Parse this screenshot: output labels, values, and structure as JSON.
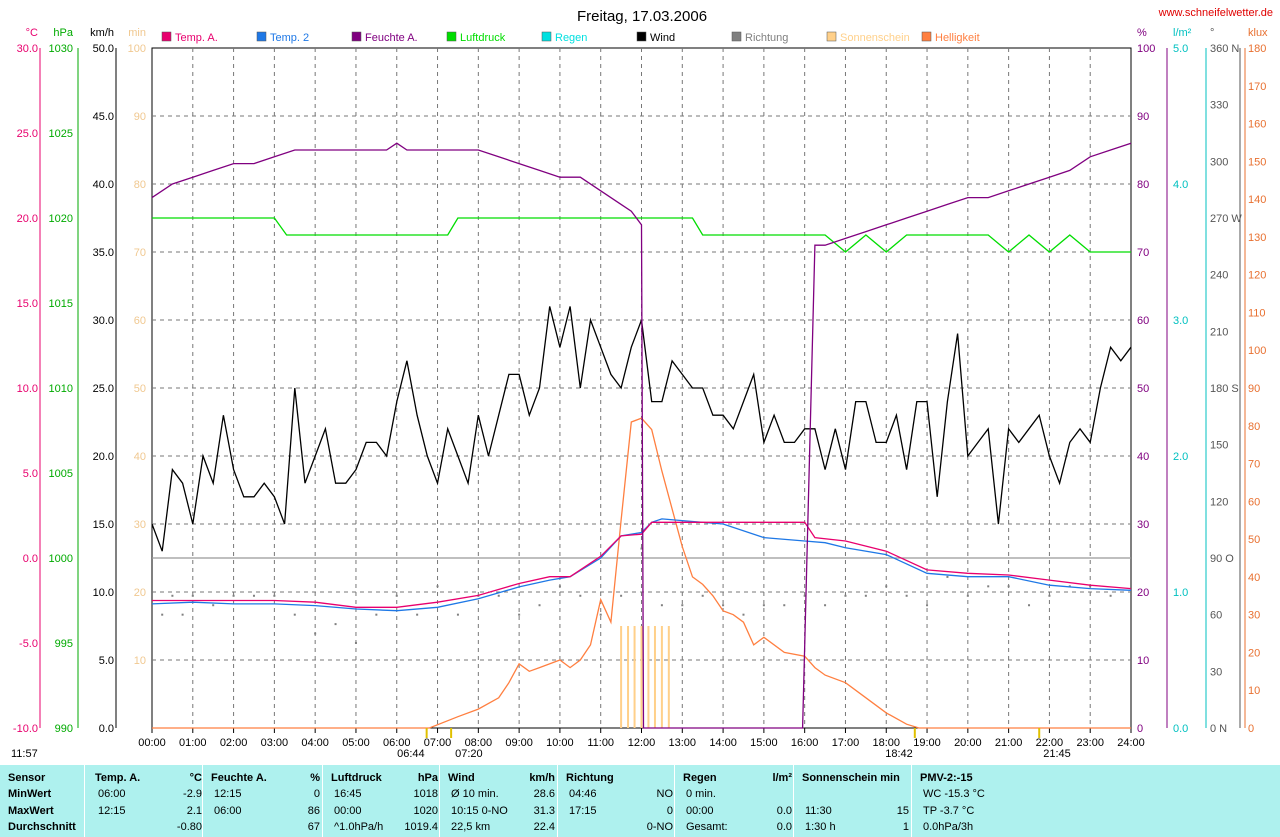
{
  "site": "www.schneifelwetter.de",
  "left_info": "11:57",
  "sun_events": [
    {
      "label": "06:44",
      "time": 6.733
    },
    {
      "label": "07:20",
      "time": 7.333
    },
    {
      "label": "18:42",
      "time": 18.7
    },
    {
      "label": "21:45",
      "time": 21.75
    }
  ],
  "chart_data": {
    "type": "line",
    "title": "Freitag, 17.03.2006",
    "x_range": [
      0,
      24
    ],
    "x_tick_labels": [
      "00:00",
      "01:00",
      "02:00",
      "03:00",
      "04:00",
      "05:00",
      "06:00",
      "07:00",
      "08:00",
      "09:00",
      "10:00",
      "11:00",
      "12:00",
      "13:00",
      "14:00",
      "15:00",
      "16:00",
      "17:00",
      "18:00",
      "19:00",
      "20:00",
      "21:00",
      "22:00",
      "23:00",
      "24:00"
    ],
    "grid": true,
    "legend_position": "top",
    "legend": [
      {
        "name": "Temp. A.",
        "color": "#e8006e"
      },
      {
        "name": "Temp. 2",
        "color": "#1e78e6"
      },
      {
        "name": "Feuchte A.",
        "color": "#800080"
      },
      {
        "name": "Luftdruck",
        "color": "#00dd00"
      },
      {
        "name": "Regen",
        "color": "#00e0e0"
      },
      {
        "name": "Wind",
        "color": "#000000"
      },
      {
        "name": "Richtung",
        "color": "#808080"
      },
      {
        "name": "Sonnenschein",
        "color": "#ffd08a"
      },
      {
        "name": "Helligkeit",
        "color": "#ff7f40"
      }
    ],
    "axes": [
      {
        "unit": "°C",
        "color": "#e8006e",
        "range": [
          -10,
          30
        ],
        "ticks": [
          "30.0",
          "25.0",
          "20.0",
          "15.0",
          "10.0",
          "5.0",
          "0.0",
          "-5.0",
          "-10.0"
        ]
      },
      {
        "unit": "hPa",
        "color": "#00aa00",
        "range": [
          990,
          1030
        ],
        "ticks": [
          "1030",
          "1025",
          "1020",
          "1015",
          "1010",
          "1005",
          "1000",
          "995",
          "990"
        ]
      },
      {
        "unit": "km/h",
        "color": "#000000",
        "range": [
          0,
          50
        ],
        "ticks": [
          "50.0",
          "45.0",
          "40.0",
          "35.0",
          "30.0",
          "25.0",
          "20.0",
          "15.0",
          "10.0",
          "5.0",
          "0.0"
        ]
      },
      {
        "unit": "min",
        "color": "#f0c890",
        "range": [
          0,
          100
        ],
        "ticks": [
          "100",
          "90",
          "80",
          "70",
          "60",
          "50",
          "40",
          "30",
          "20",
          "10"
        ]
      },
      {
        "unit": "%",
        "color": "#800080",
        "range": [
          0,
          100
        ],
        "ticks": [
          "100",
          "90",
          "80",
          "70",
          "60",
          "50",
          "40",
          "30",
          "20",
          "10",
          "0"
        ]
      },
      {
        "unit": "l/m²",
        "color": "#00c0c0",
        "range": [
          0,
          5
        ],
        "ticks": [
          "5.0",
          "4.0",
          "3.0",
          "2.0",
          "1.0",
          "0.0"
        ]
      },
      {
        "unit": "°",
        "color": "#555555",
        "range": [
          0,
          360
        ],
        "ticks": [
          "360 N",
          "330",
          "300",
          "270 W",
          "240",
          "210",
          "180 S",
          "150",
          "120",
          "90 O",
          "60",
          "30",
          "0 N"
        ]
      },
      {
        "unit": "klux",
        "color": "#e87030",
        "range": [
          0,
          180
        ],
        "ticks": [
          "180",
          "170",
          "160",
          "150",
          "140",
          "130",
          "120",
          "110",
          "100",
          "90",
          "80",
          "70",
          "60",
          "50",
          "40",
          "30",
          "20",
          "10",
          "0"
        ]
      }
    ],
    "series": [
      {
        "name": "Temp. A.",
        "axis": "°C",
        "color": "#e8006e",
        "x": [
          0,
          1,
          2,
          3,
          4,
          5,
          6,
          7,
          8,
          9,
          9.75,
          10.25,
          11,
          11.5,
          12,
          12.25,
          12.5,
          13,
          14,
          15,
          16,
          16.25,
          17,
          18,
          19,
          20,
          21,
          22,
          23,
          24
        ],
        "y": [
          -2.5,
          -2.5,
          -2.5,
          -2.5,
          -2.6,
          -2.9,
          -2.9,
          -2.6,
          -2.2,
          -1.5,
          -1.1,
          -1.1,
          0.1,
          1.3,
          1.4,
          2.1,
          2.1,
          2.1,
          2.1,
          2.1,
          2.1,
          1.2,
          1.0,
          0.4,
          -0.7,
          -0.9,
          -1.0,
          -1.3,
          -1.6,
          -1.8
        ]
      },
      {
        "name": "Temp. 2",
        "axis": "°C",
        "color": "#1e78e6",
        "x": [
          0,
          1,
          2,
          3,
          4,
          5,
          6,
          7,
          8,
          9,
          9.75,
          10.25,
          11,
          11.5,
          12,
          12.25,
          12.5,
          13,
          14,
          15,
          16,
          16.5,
          17,
          18,
          19,
          20,
          21,
          22,
          23,
          24
        ],
        "y": [
          -2.7,
          -2.6,
          -2.7,
          -2.7,
          -2.8,
          -3.0,
          -3.1,
          -2.9,
          -2.4,
          -1.7,
          -1.3,
          -1.1,
          0,
          1.3,
          1.5,
          2.1,
          2.3,
          2.2,
          2.0,
          1.2,
          1.0,
          0.9,
          0.6,
          0.2,
          -0.9,
          -1.1,
          -1.1,
          -1.6,
          -1.8,
          -1.9
        ]
      },
      {
        "name": "Feuchte A.",
        "axis": "%",
        "color": "#800080",
        "x": [
          0,
          0.5,
          1,
          1.5,
          2,
          2.5,
          3,
          3.5,
          4,
          5,
          5.75,
          6,
          6.25,
          7,
          8,
          8.5,
          9,
          9.5,
          10,
          10.5,
          11,
          11.5,
          11.75,
          12,
          12.05,
          12.2,
          12.22,
          15.9,
          15.95,
          16.25,
          16.5,
          17,
          17.5,
          18,
          18.5,
          19,
          19.5,
          20,
          20.5,
          21,
          21.5,
          22,
          22.5,
          23,
          23.5,
          24
        ],
        "y": [
          78,
          80,
          81,
          82,
          83,
          83,
          84,
          85,
          85,
          85,
          85,
          86,
          85,
          85,
          85,
          84,
          83,
          82,
          81,
          81,
          79,
          77,
          76,
          74,
          0,
          0,
          0,
          0,
          0,
          71,
          71,
          72,
          73,
          74,
          75,
          76,
          77,
          78,
          78,
          79,
          80,
          81,
          82,
          84,
          85,
          86
        ]
      },
      {
        "name": "Luftdruck",
        "axis": "hPa",
        "color": "#00dd00",
        "x": [
          0,
          3,
          3.3,
          4,
          5,
          6,
          7,
          7.25,
          7.5,
          8,
          9,
          10,
          11,
          12,
          13,
          13.25,
          13.5,
          14,
          15,
          16,
          16.5,
          17,
          17.5,
          18,
          18.5,
          19,
          20,
          20.5,
          21,
          21.5,
          22,
          22.5,
          23,
          24
        ],
        "y": [
          1020,
          1020,
          1019,
          1019,
          1019,
          1019,
          1019,
          1019,
          1020,
          1020,
          1020,
          1020,
          1020,
          1020,
          1020,
          1020,
          1019,
          1019,
          1019,
          1019,
          1019,
          1018,
          1019,
          1018,
          1019,
          1019,
          1019,
          1019,
          1018,
          1019,
          1018,
          1019,
          1018,
          1018
        ]
      },
      {
        "name": "Wind",
        "axis": "km/h",
        "color": "#000000",
        "x": [
          0,
          0.25,
          0.5,
          0.75,
          1,
          1.25,
          1.5,
          1.75,
          2,
          2.25,
          2.5,
          2.75,
          3,
          3.25,
          3.5,
          3.75,
          4,
          4.25,
          4.5,
          4.75,
          5,
          5.25,
          5.5,
          5.75,
          6,
          6.25,
          6.5,
          6.75,
          7,
          7.25,
          7.5,
          7.75,
          8,
          8.25,
          8.5,
          8.75,
          9,
          9.25,
          9.5,
          9.75,
          10,
          10.25,
          10.5,
          10.75,
          11,
          11.25,
          11.5,
          11.75,
          12,
          12.25,
          12.5,
          12.75,
          13,
          13.25,
          13.5,
          13.75,
          14,
          14.25,
          14.5,
          14.75,
          15,
          15.25,
          15.5,
          15.75,
          16,
          16.25,
          16.5,
          16.75,
          17,
          17.25,
          17.5,
          17.75,
          18,
          18.25,
          18.5,
          18.75,
          19,
          19.25,
          19.5,
          19.75,
          20,
          20.25,
          20.5,
          20.75,
          21,
          21.25,
          21.5,
          21.75,
          22,
          22.25,
          22.5,
          22.75,
          23,
          23.25,
          23.5,
          23.75,
          24
        ],
        "y": [
          15,
          13,
          19,
          18,
          15,
          20,
          18,
          23,
          19,
          17,
          17,
          18,
          17,
          15,
          25,
          18,
          20,
          22,
          18,
          18,
          19,
          21,
          21,
          20,
          24,
          27,
          23,
          20,
          18,
          22,
          20,
          18,
          23,
          20,
          23,
          26,
          26,
          23,
          25,
          31,
          28,
          31,
          25,
          30,
          28,
          26,
          25,
          28,
          30,
          24,
          24,
          27,
          26,
          25,
          25,
          23,
          23,
          22,
          24,
          26,
          21,
          23,
          21,
          21,
          22,
          22,
          19,
          22,
          19,
          24,
          24,
          21,
          21,
          23,
          19,
          24,
          24,
          17,
          24,
          29,
          20,
          21,
          22,
          15,
          22,
          21,
          22,
          23,
          20,
          18,
          21,
          22,
          21,
          25,
          28,
          27,
          28
        ]
      },
      {
        "name": "Helligkeit",
        "axis": "klux",
        "color": "#ff7f40",
        "x": [
          0,
          6.8,
          7.5,
          8,
          8.5,
          8.75,
          9,
          9.25,
          9.5,
          10,
          10.25,
          10.5,
          10.75,
          11,
          11.25,
          11.5,
          11.75,
          12,
          12.25,
          12.5,
          12.75,
          13,
          13.25,
          13.5,
          13.75,
          14,
          14.25,
          14.5,
          14.75,
          15,
          15.5,
          16,
          16.25,
          16.5,
          17,
          17.5,
          18,
          18.5,
          18.8,
          24
        ],
        "y": [
          0,
          0,
          3,
          5,
          8,
          12,
          17,
          15,
          16,
          18,
          16,
          18,
          22,
          34,
          28,
          55,
          81,
          82,
          79,
          68,
          58,
          48,
          40,
          38,
          35,
          31,
          30,
          28,
          22,
          24,
          20,
          19,
          16,
          14,
          12,
          8,
          4,
          1,
          0,
          0
        ]
      },
      {
        "name": "Sonnenschein",
        "axis": "min",
        "color": "#ffd08a",
        "x": [
          11.5,
          11.67,
          11.83,
          12,
          12.17,
          12.33,
          12.5,
          12.67
        ],
        "y": [
          15,
          15,
          15,
          15,
          15,
          15,
          15,
          15
        ]
      },
      {
        "name": "Richtung",
        "axis": "°",
        "color": "#808080",
        "x": [
          0.25,
          0.5,
          0.75,
          1,
          1.5,
          2,
          2.5,
          3,
          3.5,
          4,
          4.5,
          5,
          5.5,
          6,
          6.5,
          7,
          7.5,
          8,
          8.5,
          9,
          9.5,
          10,
          10.5,
          11,
          11.5,
          12,
          12.5,
          13,
          13.5,
          14,
          14.5,
          15,
          15.5,
          16,
          16.5,
          17,
          17.5,
          18,
          18.5,
          19,
          19.5,
          20,
          20.5,
          21,
          21.5,
          22,
          22.5,
          23,
          23.5,
          24
        ],
        "y": [
          60,
          70,
          60,
          70,
          65,
          70,
          70,
          70,
          60,
          50,
          55,
          45,
          60,
          70,
          60,
          75,
          60,
          70,
          70,
          60,
          65,
          75,
          70,
          60,
          70,
          95,
          65,
          65,
          70,
          65,
          60,
          65,
          65,
          70,
          65,
          70,
          70,
          75,
          70,
          65,
          80,
          70,
          75,
          75,
          65,
          70,
          75,
          75,
          70,
          65
        ]
      }
    ]
  },
  "table": {
    "row_labels": [
      "Sensor",
      "MinWert",
      "MaxWert",
      "Durchschnitt"
    ],
    "groups": [
      {
        "name": "Temp. A.",
        "unit": "°C",
        "rows": [
          [
            "06:00",
            "-2.9"
          ],
          [
            "12:15",
            "2.1"
          ],
          [
            "",
            "-0.80"
          ]
        ]
      },
      {
        "name": "Feuchte A.",
        "unit": "%",
        "rows": [
          [
            "12:15",
            "0"
          ],
          [
            "06:00",
            "86"
          ],
          [
            "",
            "67"
          ]
        ]
      },
      {
        "name": "Luftdruck",
        "unit": "hPa",
        "rows": [
          [
            "16:45",
            "1018"
          ],
          [
            "00:00",
            "1020"
          ],
          [
            "^1.0hPa/h",
            "1019.4"
          ]
        ]
      },
      {
        "name": "Wind",
        "unit": "km/h",
        "rows": [
          [
            "Ø 10 min.",
            "28.6"
          ],
          [
            "10:15  0-NO",
            "31.3"
          ],
          [
            "22,5 km",
            "22.4"
          ]
        ]
      },
      {
        "name": "Richtung",
        "unit": "",
        "rows": [
          [
            "04:46",
            "NO"
          ],
          [
            "17:15",
            "0"
          ],
          [
            "",
            "0-NO"
          ]
        ]
      },
      {
        "name": "Regen",
        "unit": "l/m²",
        "rows": [
          [
            "0 min.",
            ""
          ],
          [
            "00:00",
            "0.0"
          ],
          [
            "Gesamt:",
            "0.0"
          ]
        ]
      },
      {
        "name": "Sonnenschein min",
        "unit": "",
        "rows": [
          [
            "",
            ""
          ],
          [
            "11:30",
            "15"
          ],
          [
            "1:30 h",
            "1"
          ]
        ]
      },
      {
        "name": "PMV-2:-15",
        "unit": "",
        "rows": [
          [
            "WC -15.3 °C",
            ""
          ],
          [
            "TP -3.7 °C",
            ""
          ],
          [
            "0.0hPa/3h",
            ""
          ]
        ]
      }
    ]
  }
}
